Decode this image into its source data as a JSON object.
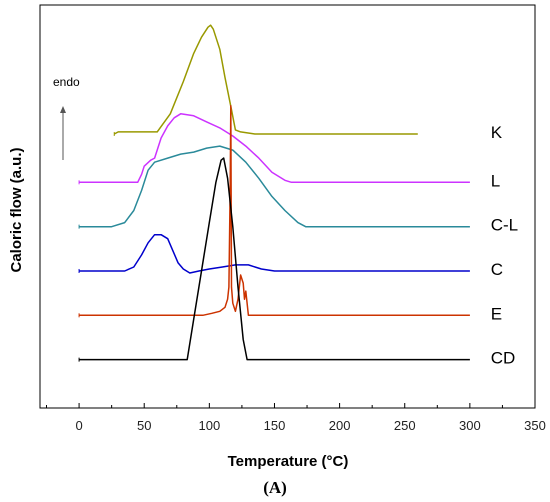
{
  "chart_data": {
    "type": "line",
    "xlabel": "Temperature (°C)",
    "ylabel": "Caloric flow (a.u.)",
    "panel_label": "(A)",
    "endo_label": "endo",
    "xlim": [
      -30,
      350
    ],
    "ylim": [
      0,
      100
    ],
    "xticks": [
      0,
      50,
      100,
      150,
      200,
      250,
      300,
      350
    ],
    "grid": false,
    "series": [
      {
        "name": "K",
        "color": "#999900",
        "label_x": 316,
        "label_y": 67,
        "points": [
          [
            27,
            68
          ],
          [
            30,
            68.5
          ],
          [
            60,
            68.5
          ],
          [
            70,
            73
          ],
          [
            80,
            81
          ],
          [
            88,
            88
          ],
          [
            94,
            92
          ],
          [
            99,
            94.5
          ],
          [
            101,
            95
          ],
          [
            103,
            94
          ],
          [
            108,
            89
          ],
          [
            112,
            82
          ],
          [
            117,
            74
          ],
          [
            120,
            69
          ],
          [
            124,
            68.5
          ],
          [
            135,
            68
          ],
          [
            200,
            68
          ],
          [
            260,
            68
          ]
        ]
      },
      {
        "name": "L",
        "color": "#cc33ff",
        "label_x": 316,
        "label_y": 55,
        "points": [
          [
            0,
            56
          ],
          [
            45,
            56
          ],
          [
            48,
            58
          ],
          [
            50,
            60
          ],
          [
            55,
            61.5
          ],
          [
            58,
            62
          ],
          [
            63,
            67
          ],
          [
            68,
            70
          ],
          [
            73,
            72
          ],
          [
            78,
            73
          ],
          [
            88,
            72.5
          ],
          [
            98,
            71
          ],
          [
            108,
            69.5
          ],
          [
            118,
            67.5
          ],
          [
            128,
            65
          ],
          [
            138,
            62
          ],
          [
            148,
            58.5
          ],
          [
            158,
            56.5
          ],
          [
            163,
            56
          ],
          [
            200,
            56
          ],
          [
            300,
            56
          ]
        ]
      },
      {
        "name": "C-L",
        "color": "#2a8a9a",
        "label_x": 316,
        "label_y": 44,
        "points": [
          [
            0,
            45
          ],
          [
            25,
            45
          ],
          [
            35,
            46
          ],
          [
            42,
            49
          ],
          [
            48,
            54
          ],
          [
            53,
            59
          ],
          [
            58,
            61
          ],
          [
            68,
            62
          ],
          [
            78,
            63
          ],
          [
            88,
            63.5
          ],
          [
            98,
            64.5
          ],
          [
            108,
            65
          ],
          [
            118,
            64
          ],
          [
            128,
            61
          ],
          [
            138,
            57
          ],
          [
            148,
            52.5
          ],
          [
            158,
            49
          ],
          [
            168,
            46
          ],
          [
            174,
            45
          ],
          [
            200,
            45
          ],
          [
            300,
            45
          ]
        ]
      },
      {
        "name": "C",
        "color": "#0000cc",
        "label_x": 316,
        "label_y": 33,
        "points": [
          [
            0,
            34
          ],
          [
            35,
            34
          ],
          [
            42,
            35
          ],
          [
            48,
            38
          ],
          [
            53,
            41
          ],
          [
            58,
            43
          ],
          [
            63,
            43
          ],
          [
            68,
            42
          ],
          [
            72,
            39
          ],
          [
            76,
            36
          ],
          [
            80,
            34.5
          ],
          [
            85,
            33.5
          ],
          [
            92,
            34
          ],
          [
            100,
            34.5
          ],
          [
            110,
            35
          ],
          [
            120,
            35.5
          ],
          [
            130,
            35.5
          ],
          [
            140,
            34.5
          ],
          [
            150,
            34
          ],
          [
            200,
            34
          ],
          [
            300,
            34
          ]
        ]
      },
      {
        "name": "E",
        "color": "#cc3300",
        "label_x": 316,
        "label_y": 22,
        "points": [
          [
            0,
            23
          ],
          [
            85,
            23
          ],
          [
            95,
            23
          ],
          [
            102,
            23.5
          ],
          [
            108,
            24
          ],
          [
            112,
            25
          ],
          [
            114,
            27
          ],
          [
            115,
            30
          ],
          [
            116,
            55
          ],
          [
            116.5,
            75
          ],
          [
            117,
            30
          ],
          [
            118,
            26
          ],
          [
            120,
            24
          ],
          [
            122,
            27
          ],
          [
            124,
            33
          ],
          [
            126,
            31
          ],
          [
            127,
            27
          ],
          [
            128,
            29
          ],
          [
            129,
            26
          ],
          [
            130,
            23
          ],
          [
            150,
            23
          ],
          [
            300,
            23
          ]
        ]
      },
      {
        "name": "CD",
        "color": "#000000",
        "label_x": 316,
        "label_y": 11,
        "points": [
          [
            0,
            12
          ],
          [
            75,
            12
          ],
          [
            83,
            12
          ],
          [
            88,
            22
          ],
          [
            94,
            34
          ],
          [
            100,
            46
          ],
          [
            105,
            56
          ],
          [
            109,
            61.5
          ],
          [
            111,
            62
          ],
          [
            114,
            57
          ],
          [
            118,
            45
          ],
          [
            122,
            30
          ],
          [
            126,
            17
          ],
          [
            129,
            12
          ],
          [
            140,
            12
          ],
          [
            300,
            12
          ]
        ]
      }
    ]
  }
}
